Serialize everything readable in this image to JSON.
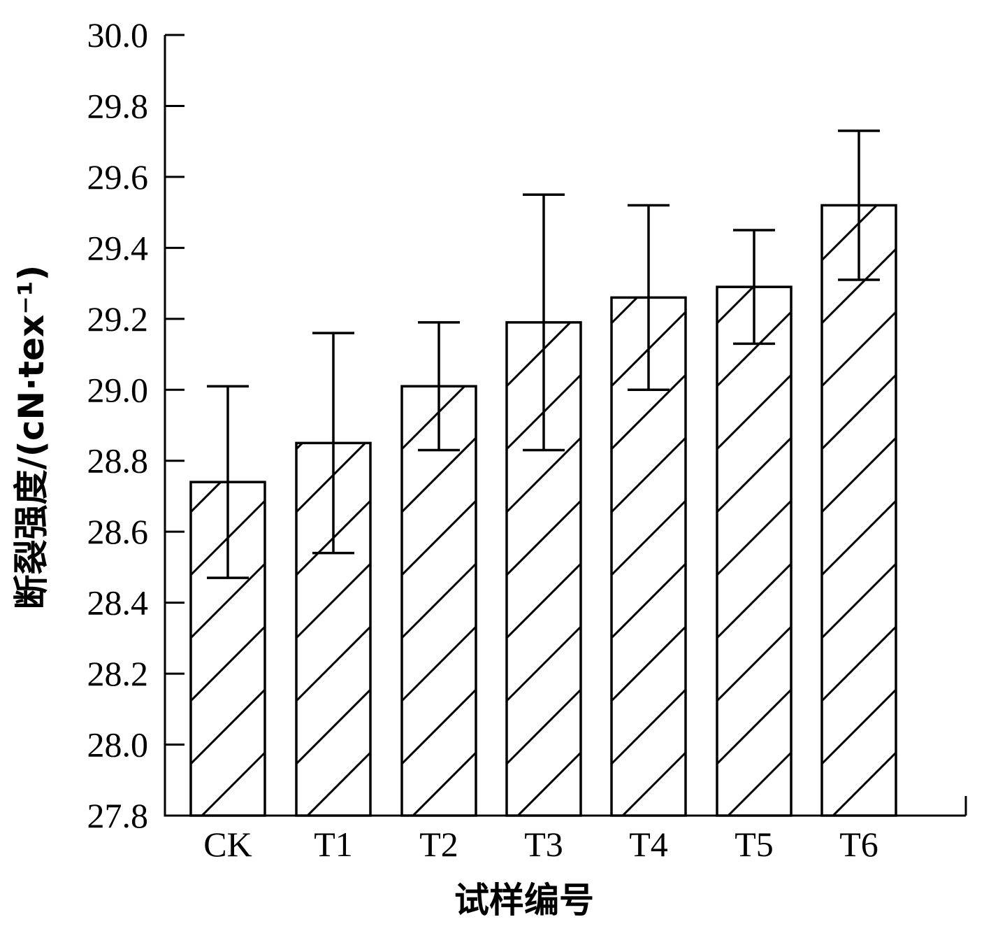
{
  "chart_data": {
    "type": "bar",
    "categories": [
      "CK",
      "T1",
      "T2",
      "T3",
      "T4",
      "T5",
      "T6"
    ],
    "values": [
      28.74,
      28.85,
      29.01,
      29.19,
      29.26,
      29.29,
      29.52
    ],
    "error_upper": [
      29.01,
      29.16,
      29.19,
      29.55,
      29.52,
      29.45,
      29.73
    ],
    "error_lower": [
      28.47,
      28.54,
      28.83,
      28.83,
      29.0,
      29.13,
      29.31
    ],
    "yticks": [
      "27.8",
      "28.0",
      "28.2",
      "28.4",
      "28.6",
      "28.8",
      "29.0",
      "29.2",
      "29.4",
      "29.6",
      "29.8",
      "30.0"
    ],
    "ylim": [
      27.8,
      30.0
    ],
    "xlabel": "试样编号",
    "ylabel": "断裂强度/(cN·tex⁻¹)",
    "bar_fill": "hatched",
    "grid": false,
    "legend": "none",
    "colors": {
      "bar_stroke": "#000000",
      "hatch": "#000000",
      "background": "#ffffff"
    }
  }
}
